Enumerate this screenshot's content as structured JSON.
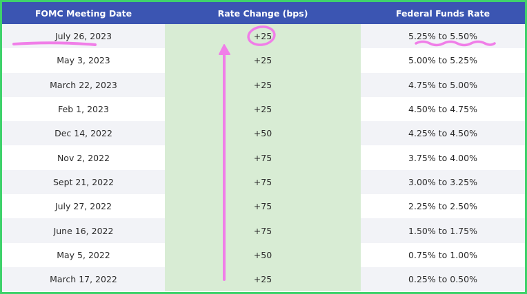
{
  "table": {
    "headers": [
      "FOMC Meeting Date",
      "Rate Change (bps)",
      "Federal Funds Rate"
    ],
    "rows": [
      {
        "date": "July 26, 2023",
        "change": "+25",
        "rate": "5.25% to 5.50%"
      },
      {
        "date": "May 3, 2023",
        "change": "+25",
        "rate": "5.00% to 5.25%"
      },
      {
        "date": "March 22, 2023",
        "change": "+25",
        "rate": "4.75% to 5.00%"
      },
      {
        "date": "Feb 1, 2023",
        "change": "+25",
        "rate": "4.50% to 4.75%"
      },
      {
        "date": "Dec 14, 2022",
        "change": "+50",
        "rate": "4.25% to 4.50%"
      },
      {
        "date": "Nov 2, 2022",
        "change": "+75",
        "rate": "3.75% to 4.00%"
      },
      {
        "date": "Sept 21, 2022",
        "change": "+75",
        "rate": "3.00% to 3.25%"
      },
      {
        "date": "July 27, 2022",
        "change": "+75",
        "rate": "2.25% to 2.50%"
      },
      {
        "date": "June 16, 2022",
        "change": "+75",
        "rate": "1.50% to 1.75%"
      },
      {
        "date": "May 5, 2022",
        "change": "+50",
        "rate": "0.75% to 1.00%"
      },
      {
        "date": "March 17, 2022",
        "change": "+25",
        "rate": "0.25% to 0.50%"
      }
    ]
  },
  "colors": {
    "frame_border": "#3fd26b",
    "header_bg": "#3b55b2",
    "header_text": "#ffffff",
    "stripe_bg": "#f2f3f7",
    "middle_column_bg": "#d8ecd4",
    "annotation": "#f07ee8"
  },
  "annotations": [
    "underline-date",
    "circle-change",
    "wavy-underline-rate",
    "up-arrow"
  ]
}
